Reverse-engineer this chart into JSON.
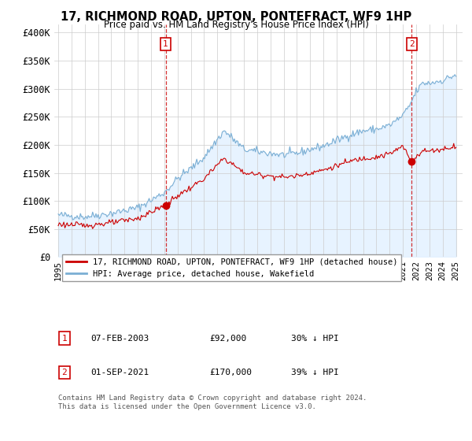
{
  "title": "17, RICHMOND ROAD, UPTON, PONTEFRACT, WF9 1HP",
  "subtitle": "Price paid vs. HM Land Registry's House Price Index (HPI)",
  "ylabel_ticks": [
    "£0",
    "£50K",
    "£100K",
    "£150K",
    "£200K",
    "£250K",
    "£300K",
    "£350K",
    "£400K"
  ],
  "ytick_values": [
    0,
    50000,
    100000,
    150000,
    200000,
    250000,
    300000,
    350000,
    400000
  ],
  "ylim": [
    0,
    415000
  ],
  "xlim_start": 1994.7,
  "xlim_end": 2025.5,
  "legend_label_red": "17, RICHMOND ROAD, UPTON, PONTEFRACT, WF9 1HP (detached house)",
  "legend_label_blue": "HPI: Average price, detached house, Wakefield",
  "transaction1_label": "1",
  "transaction1_date": "07-FEB-2003",
  "transaction1_price": "£92,000",
  "transaction1_hpi": "30% ↓ HPI",
  "transaction2_label": "2",
  "transaction2_date": "01-SEP-2021",
  "transaction2_price": "£170,000",
  "transaction2_hpi": "39% ↓ HPI",
  "footer": "Contains HM Land Registry data © Crown copyright and database right 2024.\nThis data is licensed under the Open Government Licence v3.0.",
  "color_red": "#cc0000",
  "color_blue": "#7bafd4",
  "fill_blue": "#ddeeff",
  "grid_color": "#cccccc",
  "background_color": "#ffffff",
  "transaction1_x": 2003.1,
  "transaction1_y": 92000,
  "transaction2_x": 2021.67,
  "transaction2_y": 170000,
  "xtick_years": [
    1995,
    1996,
    1997,
    1998,
    1999,
    2000,
    2001,
    2002,
    2003,
    2004,
    2005,
    2006,
    2007,
    2008,
    2009,
    2010,
    2011,
    2012,
    2013,
    2014,
    2015,
    2016,
    2017,
    2018,
    2019,
    2020,
    2021,
    2022,
    2023,
    2024,
    2025
  ]
}
